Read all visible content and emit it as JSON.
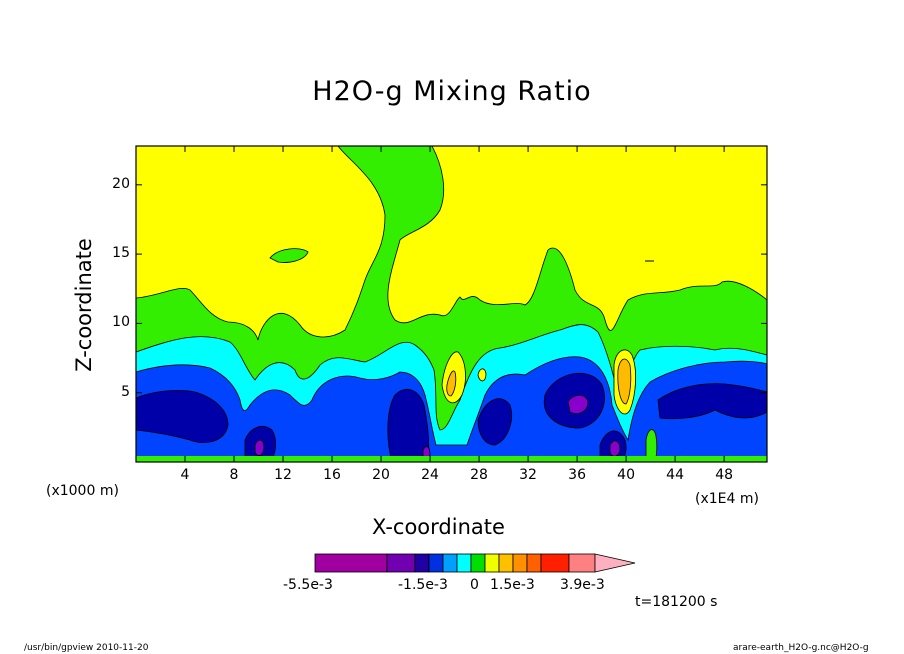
{
  "chart_data": {
    "type": "contour",
    "title": "H2O-g Mixing Ratio",
    "xlabel": "X-coordinate",
    "ylabel": "Z-coordinate",
    "x_unit_note": "(x1000 m)",
    "x_scale_note": "(x1E4 m)",
    "x_ticks": [
      "4",
      "8",
      "12",
      "16",
      "20",
      "24",
      "28",
      "32",
      "36",
      "40",
      "44",
      "48"
    ],
    "y_ticks": [
      "5",
      "10",
      "15",
      "20"
    ],
    "xlim": [
      0,
      51.5
    ],
    "ylim": [
      0,
      22.8
    ],
    "colorbar": {
      "labels": [
        "-5.5e-3",
        "-1.5e-3",
        "0",
        "1.5e-3",
        "3.9e-3"
      ],
      "colors": [
        "#a000a0",
        "#7000b0",
        "#2000a0",
        "#0030e0",
        "#00a0ff",
        "#00ffff",
        "#00e000",
        "#f0ff00",
        "#ffc000",
        "#ff9000",
        "#ff6000",
        "#ff2000",
        "#ff8080",
        "#ffb0c0"
      ]
    },
    "time_label": "t=181200 s"
  },
  "footer": {
    "left": "/usr/bin/gpview  2010-11-20",
    "right": "arare-earth_H2O-g.nc@H2O-g"
  },
  "colors": {
    "yellow": "#ffff00",
    "green": "#33ee00",
    "cyan": "#00ffff",
    "blue": "#0044ff",
    "navy": "#0000a8",
    "purple": "#8800cc",
    "orange": "#ffbb00"
  }
}
